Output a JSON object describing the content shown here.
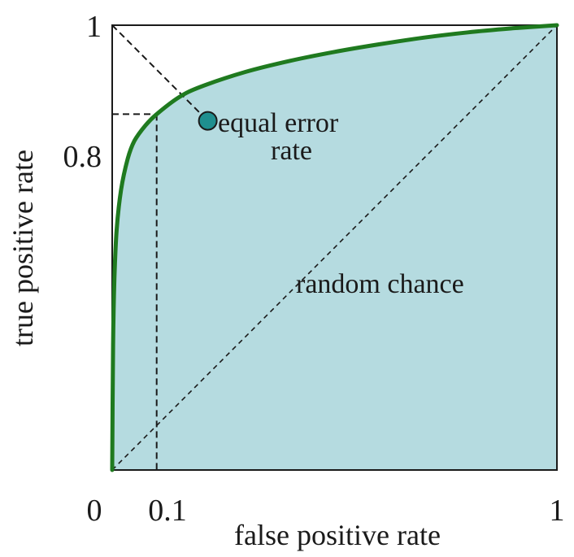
{
  "chart_data": {
    "type": "line",
    "title": "",
    "xlabel": "false positive rate",
    "ylabel": "true positive rate",
    "xlim": [
      0,
      1
    ],
    "ylim": [
      0,
      1
    ],
    "x_ticks": [
      "0",
      "0.1",
      "1"
    ],
    "y_ticks": [
      "0.8",
      "1"
    ],
    "series": [
      {
        "x": [
          0,
          0.002,
          0.005,
          0.01,
          0.02,
          0.035,
          0.05,
          0.075,
          0.1,
          0.15,
          0.2,
          0.3,
          0.4,
          0.5,
          0.6,
          0.7,
          0.8,
          0.9,
          1.0
        ],
        "y": [
          0,
          0.28,
          0.43,
          0.54,
          0.63,
          0.7,
          0.74,
          0.775,
          0.8,
          0.838,
          0.862,
          0.895,
          0.92,
          0.94,
          0.957,
          0.972,
          0.984,
          0.993,
          1.0
        ]
      }
    ],
    "markers": [
      {
        "label": "equal error rate",
        "x": 0.215,
        "y": 0.785
      }
    ],
    "reference_lines": [
      {
        "label": "random chance",
        "x": [
          0,
          1
        ],
        "y": [
          0,
          1
        ]
      }
    ],
    "highlight_point": {
      "x": 0.1,
      "y": 0.8
    },
    "colors": {
      "curve": "#1f7a1f",
      "fill": "#b5dbe0",
      "marker": "#1f8f8f",
      "axes": "#1a1a1a"
    }
  },
  "annotations": {
    "eer_line1": "equal error",
    "eer_line2": "rate",
    "random": "random chance"
  }
}
